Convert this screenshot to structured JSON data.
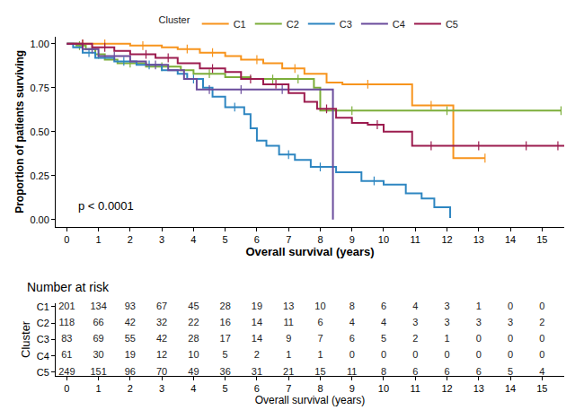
{
  "chart_data": {
    "type": "step",
    "xlabel": "Overall survival (years)",
    "ylabel": "Proportion of patients surviving",
    "legend": "top",
    "legend_title": "Cluster",
    "annotation": "p < 0.0001",
    "marker": "tick",
    "xlim": [
      -0.35,
      15.7
    ],
    "xticks": [
      0,
      1,
      2,
      3,
      4,
      5,
      6,
      7,
      8,
      9,
      10,
      11,
      12,
      13,
      14,
      15
    ],
    "ylim": [
      -0.04,
      1.04
    ],
    "yticks": [
      {
        "value": 0,
        "label": "0.00"
      },
      {
        "value": 0.25,
        "label": "0.25"
      },
      {
        "value": 0.5,
        "label": "0.50"
      },
      {
        "value": 0.75,
        "label": "0.75"
      },
      {
        "value": 1,
        "label": "1.00"
      }
    ],
    "series": [
      {
        "name": "C1",
        "color": "#f7941d",
        "x": [
          0,
          2.0,
          3.0,
          3.5,
          4.2,
          5.0,
          5.5,
          6.2,
          6.8,
          7.5,
          8.2,
          8.7,
          10.9,
          12.2,
          13.2
        ],
        "values": [
          1.0,
          0.99,
          0.98,
          0.97,
          0.95,
          0.93,
          0.91,
          0.89,
          0.86,
          0.83,
          0.78,
          0.77,
          0.65,
          0.35,
          0.35
        ],
        "censor_x": [
          0.5,
          1.2,
          2.4,
          3.8,
          4.6,
          6.0,
          7.2,
          9.5,
          11.5,
          13.2
        ]
      },
      {
        "name": "C2",
        "color": "#7cae3a",
        "x": [
          0,
          0.3,
          0.6,
          0.9,
          1.2,
          1.6,
          2.5,
          3.6,
          4.0,
          5.0,
          5.8,
          7.8,
          8.0,
          15.6
        ],
        "values": [
          1.0,
          0.99,
          0.97,
          0.94,
          0.91,
          0.89,
          0.87,
          0.85,
          0.83,
          0.81,
          0.8,
          0.75,
          0.62,
          0.62
        ],
        "censor_x": [
          0.4,
          1.0,
          2.0,
          3.0,
          4.5,
          6.5,
          7.3,
          9.0,
          12.0,
          15.6
        ]
      },
      {
        "name": "C3",
        "color": "#2e86c1",
        "x": [
          0,
          0.2,
          0.5,
          0.9,
          1.5,
          2.2,
          3.0,
          3.5,
          3.8,
          4.3,
          4.6,
          5.0,
          5.6,
          5.8,
          6.0,
          6.3,
          6.7,
          7.2,
          7.7,
          8.5,
          9.3,
          10.0,
          10.7,
          11.2,
          11.6,
          12.1
        ],
        "values": [
          1.0,
          0.98,
          0.95,
          0.92,
          0.9,
          0.88,
          0.85,
          0.83,
          0.8,
          0.75,
          0.7,
          0.64,
          0.6,
          0.52,
          0.45,
          0.42,
          0.37,
          0.34,
          0.3,
          0.27,
          0.22,
          0.2,
          0.15,
          0.12,
          0.07,
          0.01
        ],
        "censor_x": [
          0.7,
          1.8,
          2.6,
          4.0,
          5.3,
          7.0,
          8.0,
          9.7
        ]
      },
      {
        "name": "C4",
        "color": "#6a4c9c",
        "x": [
          0,
          0.5,
          1.0,
          2.0,
          2.5,
          3.2,
          3.7,
          4.1,
          8.4,
          8.4
        ],
        "values": [
          1.0,
          0.97,
          0.93,
          0.9,
          0.88,
          0.85,
          0.8,
          0.74,
          0.74,
          0.0
        ],
        "censor_x": [
          0.8,
          1.5,
          2.8,
          4.5,
          5.5,
          6.8
        ]
      },
      {
        "name": "C5",
        "color": "#9c1c4f",
        "x": [
          0,
          0.8,
          1.5,
          2.0,
          2.8,
          3.5,
          4.2,
          5.0,
          5.5,
          6.2,
          7.0,
          7.5,
          7.9,
          8.5,
          9.0,
          9.5,
          10.0,
          10.9,
          15.7
        ],
        "values": [
          1.0,
          0.98,
          0.96,
          0.94,
          0.92,
          0.89,
          0.86,
          0.84,
          0.8,
          0.77,
          0.72,
          0.67,
          0.63,
          0.58,
          0.55,
          0.54,
          0.5,
          0.42,
          0.42
        ],
        "censor_x": [
          0.5,
          1.2,
          2.5,
          3.2,
          4.6,
          5.8,
          6.6,
          8.2,
          9.8,
          11.5,
          13.0,
          14.5,
          15.5
        ]
      }
    ],
    "risk_table": {
      "title": "Number at risk",
      "ylabel": "Cluster",
      "xlabel": "Overall survival (years)",
      "times": [
        0,
        1,
        2,
        3,
        4,
        5,
        6,
        7,
        8,
        9,
        10,
        11,
        12,
        13,
        14,
        15
      ],
      "rows": [
        {
          "name": "C1",
          "values": [
            201,
            134,
            93,
            67,
            45,
            28,
            19,
            13,
            10,
            8,
            6,
            4,
            3,
            1,
            0,
            0
          ]
        },
        {
          "name": "C2",
          "values": [
            118,
            66,
            42,
            32,
            22,
            16,
            14,
            11,
            6,
            4,
            4,
            3,
            3,
            3,
            3,
            2
          ]
        },
        {
          "name": "C3",
          "values": [
            83,
            69,
            55,
            42,
            28,
            17,
            14,
            9,
            7,
            6,
            5,
            2,
            1,
            0,
            0,
            0
          ]
        },
        {
          "name": "C4",
          "values": [
            61,
            30,
            19,
            12,
            10,
            5,
            2,
            1,
            1,
            0,
            0,
            0,
            0,
            0,
            0,
            0
          ]
        },
        {
          "name": "C5",
          "values": [
            249,
            151,
            96,
            70,
            49,
            36,
            31,
            21,
            15,
            11,
            8,
            6,
            6,
            6,
            5,
            4
          ]
        }
      ]
    }
  }
}
